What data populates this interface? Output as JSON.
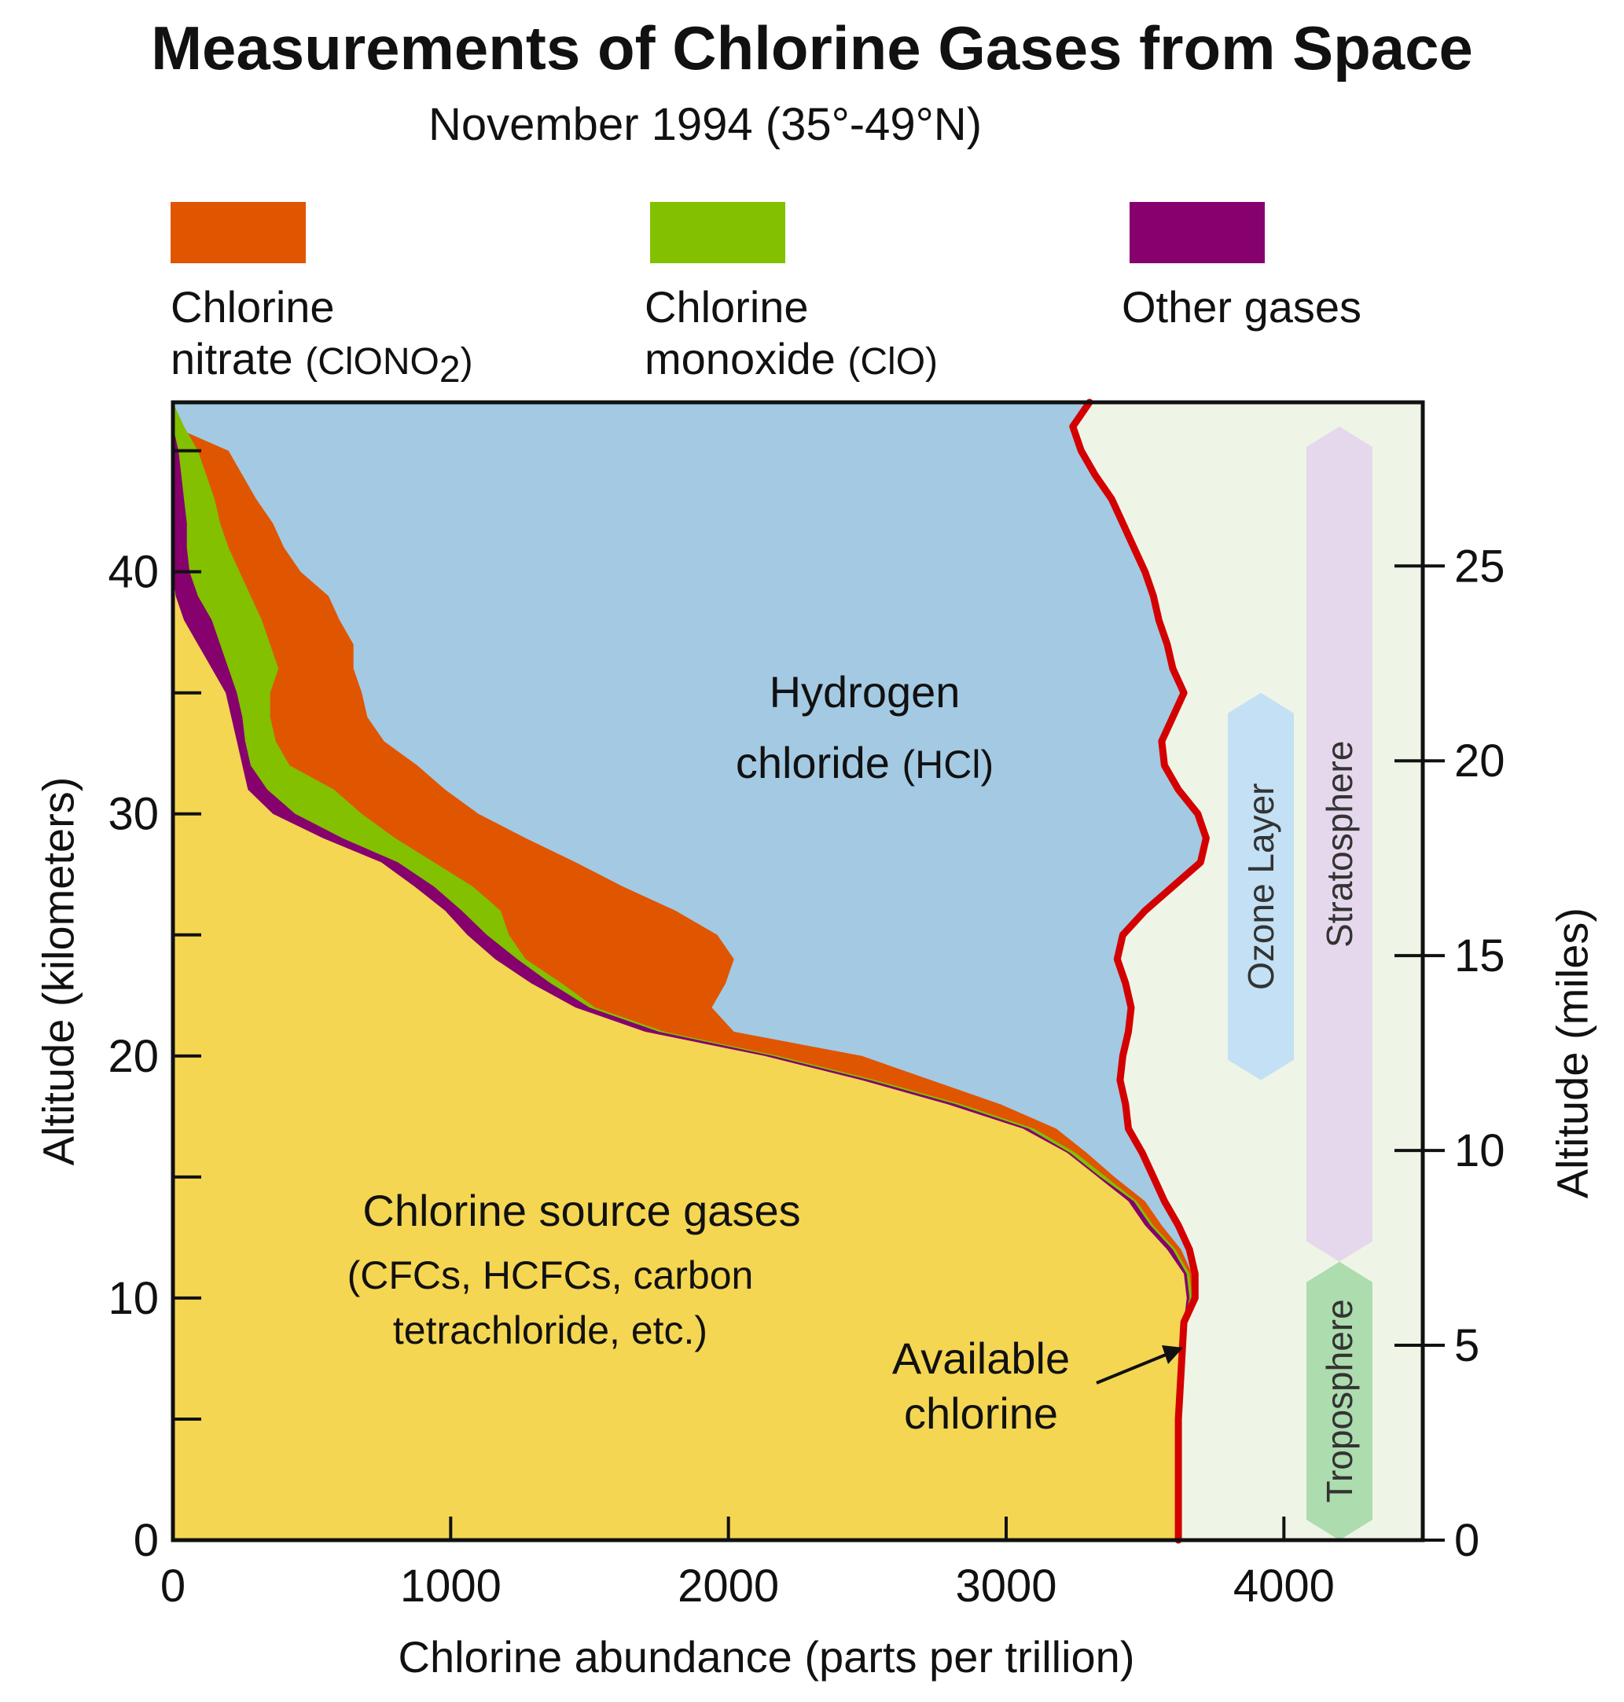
{
  "chart_data": {
    "type": "area",
    "title": "Measurements of Chlorine Gases from Space",
    "subtitle": "November 1994 (35°-49°N)",
    "xlabel": "Chlorine abundance (parts per trillion)",
    "ylabel": "Altitude (kilometers)",
    "ylabel_right": "Altitude (miles)",
    "xlim": [
      0,
      4500
    ],
    "ylim": [
      0,
      47
    ],
    "ylim_right_miles": [
      0,
      29.2
    ],
    "x_ticks": [
      0,
      1000,
      2000,
      3000,
      4000
    ],
    "y_ticks": [
      0,
      10,
      20,
      30,
      40
    ],
    "y_minor_ticks": [
      5,
      15,
      25,
      35,
      45
    ],
    "y_right_ticks": [
      0,
      5,
      10,
      15,
      20,
      25
    ],
    "legend_position": "top",
    "legend": [
      {
        "line1": "Chlorine",
        "line2_main": "nitrate",
        "line2_formula": "(ClONO",
        "line2_sub": "2",
        "line2_close": ")",
        "color": "#e05500"
      },
      {
        "line1": "Chlorine",
        "line2_main": "monoxide",
        "line2_formula": "(ClO)",
        "line2_sub": "",
        "line2_close": "",
        "color": "#82c000"
      },
      {
        "line1": "Other gases",
        "line2_main": "",
        "line2_formula": "",
        "line2_sub": "",
        "line2_close": "",
        "color": "#86006e"
      }
    ],
    "altitude_km": [
      0,
      5,
      7,
      9,
      10,
      11,
      12,
      13,
      14,
      15,
      16,
      17,
      18,
      19,
      20,
      21,
      22,
      23,
      24,
      25,
      26,
      27,
      28,
      29,
      30,
      31,
      32,
      33,
      34,
      35,
      36,
      37,
      38,
      39,
      40,
      41,
      42,
      43,
      44,
      45,
      46,
      47
    ],
    "series": [
      {
        "name": "Chlorine source gases",
        "color": "#f4d652",
        "cumulative_upper": [
          3620,
          3620,
          3630,
          3640,
          3650,
          3640,
          3580,
          3500,
          3440,
          3330,
          3220,
          3060,
          2790,
          2480,
          2130,
          1700,
          1450,
          1290,
          1160,
          1060,
          980,
          870,
          750,
          540,
          360,
          270,
          250,
          230,
          210,
          190,
          140,
          90,
          40,
          10,
          0,
          0,
          0,
          0,
          0,
          0,
          0,
          0
        ]
      },
      {
        "name": "Other gases",
        "color": "#86006e",
        "cumulative_upper": [
          3620,
          3620,
          3630,
          3640,
          3660,
          3650,
          3600,
          3520,
          3460,
          3340,
          3230,
          3080,
          2820,
          2510,
          2160,
          1750,
          1500,
          1360,
          1240,
          1130,
          1040,
          940,
          810,
          610,
          440,
          340,
          280,
          260,
          250,
          230,
          200,
          170,
          140,
          90,
          60,
          50,
          50,
          40,
          30,
          20,
          0,
          0
        ]
      },
      {
        "name": "Chlorine monoxide (ClO)",
        "color": "#82c000",
        "cumulative_upper": [
          3620,
          3620,
          3630,
          3640,
          3670,
          3660,
          3610,
          3530,
          3470,
          3360,
          3250,
          3100,
          2840,
          2530,
          2180,
          1770,
          1520,
          1400,
          1270,
          1210,
          1180,
          1080,
          940,
          800,
          680,
          580,
          420,
          370,
          350,
          350,
          380,
          350,
          320,
          280,
          240,
          200,
          170,
          150,
          120,
          90,
          40,
          0
        ]
      },
      {
        "name": "Chlorine nitrate (ClONO2)",
        "color": "#e05500",
        "cumulative_upper": [
          3620,
          3620,
          3630,
          3640,
          3680,
          3670,
          3630,
          3560,
          3500,
          3390,
          3290,
          3180,
          2980,
          2730,
          2480,
          2020,
          1940,
          1990,
          2020,
          1960,
          1810,
          1620,
          1450,
          1270,
          1100,
          980,
          880,
          760,
          700,
          680,
          650,
          650,
          600,
          560,
          460,
          400,
          360,
          300,
          250,
          200,
          0,
          0
        ]
      },
      {
        "name": "Hydrogen chloride (HCl)",
        "color": "#a3c9e3",
        "cumulative_upper": [
          3620,
          3620,
          3630,
          3640,
          3680,
          3680,
          3660,
          3620,
          3570,
          3530,
          3490,
          3440,
          3430,
          3410,
          3420,
          3440,
          3450,
          3430,
          3400,
          3420,
          3500,
          3600,
          3700,
          3720,
          3690,
          3620,
          3570,
          3560,
          3600,
          3640,
          3600,
          3580,
          3550,
          3530,
          3500,
          3460,
          3420,
          3380,
          3320,
          3270,
          3240,
          3300
        ]
      }
    ],
    "available_chlorine_line": {
      "name": "Available chlorine",
      "color": "#d40000",
      "altitude_km": [
        0,
        5,
        7,
        9,
        10,
        11,
        12,
        13,
        14,
        15,
        16,
        17,
        18,
        19,
        20,
        21,
        22,
        23,
        24,
        25,
        26,
        27,
        28,
        29,
        30,
        31,
        32,
        33,
        34,
        35,
        36,
        37,
        38,
        39,
        40,
        41,
        42,
        43,
        44,
        45,
        46,
        47
      ],
      "x": [
        3620,
        3620,
        3630,
        3640,
        3680,
        3680,
        3660,
        3620,
        3570,
        3530,
        3490,
        3440,
        3430,
        3410,
        3420,
        3440,
        3450,
        3430,
        3400,
        3420,
        3500,
        3600,
        3700,
        3720,
        3690,
        3620,
        3570,
        3560,
        3600,
        3640,
        3600,
        3580,
        3550,
        3530,
        3500,
        3460,
        3420,
        3380,
        3320,
        3270,
        3240,
        3300
      ]
    },
    "area_labels": {
      "hcl_line1": "Hydrogen",
      "hcl_line2_main": "chloride",
      "hcl_line2_formula": "(HCl)",
      "source_line1": "Chlorine source gases",
      "source_line2": "(CFCs, HCFCs, carbon",
      "source_line3": "tetrachloride, etc.)",
      "available_line1": "Available",
      "available_line2": "chlorine"
    },
    "bands": [
      {
        "label": "Ozone Layer",
        "color": "#c3e0f4",
        "km_range": [
          19,
          35
        ]
      },
      {
        "label": "Stratosphere",
        "color": "#e6d8ec",
        "km_range": [
          11.5,
          46
        ]
      },
      {
        "label": "Troposphere",
        "color": "#addcaf",
        "km_range": [
          0,
          11.5
        ]
      }
    ],
    "plot_background": "#eef5e6"
  }
}
